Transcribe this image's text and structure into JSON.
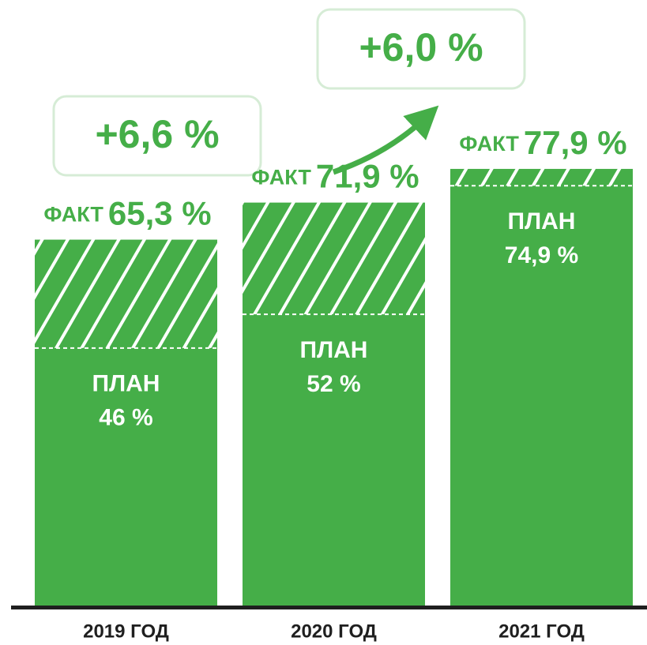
{
  "chart_data": {
    "type": "bar",
    "categories": [
      "2019 ГОД",
      "2020 ГОД",
      "2021 ГОД"
    ],
    "series": [
      {
        "name": "ПЛАН",
        "color": "#45ae48",
        "values": [
          46,
          52,
          74.9
        ],
        "value_labels": [
          "46 %",
          "52 %",
          "74,9 %"
        ]
      },
      {
        "name": "ФАКТ",
        "color": "#45ae48",
        "values": [
          65.3,
          71.9,
          77.9
        ],
        "value_labels": [
          "65,3 %",
          "71,9 %",
          "77,9 %"
        ]
      }
    ],
    "annotations": [
      "+6,6 %",
      "+6,0 %"
    ],
    "ylim": [
      0,
      80
    ]
  }
}
